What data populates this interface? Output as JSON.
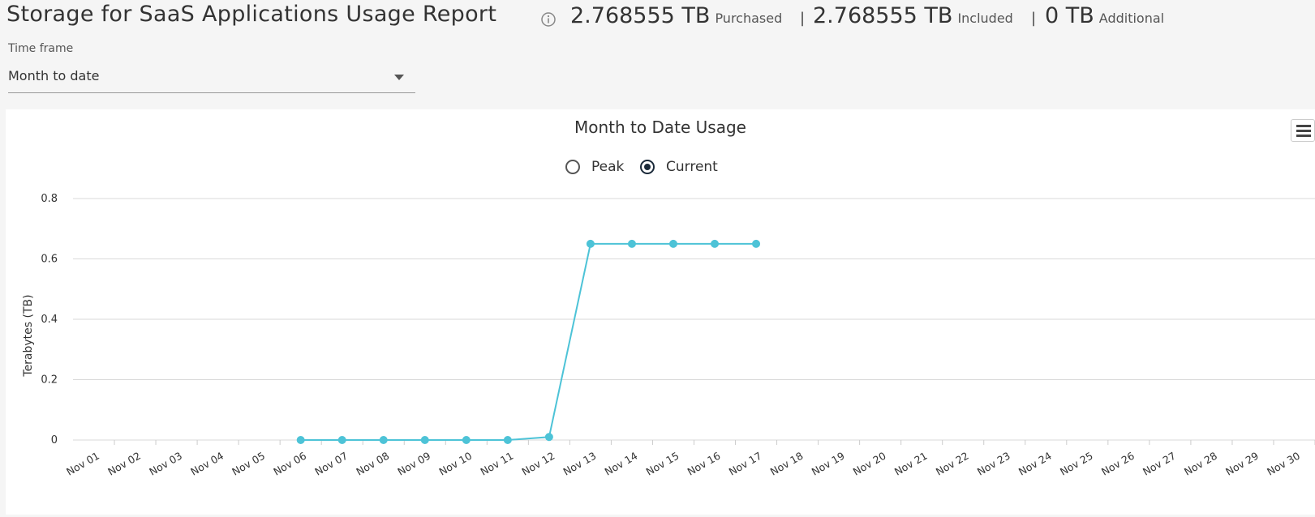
{
  "header": {
    "title": "Storage for SaaS Applications Usage Report",
    "purchased_value": "2.768555 TB",
    "purchased_label": "Purchased",
    "included_value": "2.768555 TB",
    "included_label": "Included",
    "additional_value": "0 TB",
    "additional_label": "Additional",
    "separator": "|"
  },
  "timeframe": {
    "label": "Time frame",
    "selected": "Month to date"
  },
  "chart_card": {
    "radio_peak": "Peak",
    "radio_current": "Current",
    "selected_radio": "Current"
  },
  "colors": {
    "series": "#4dc3d7",
    "grid": "#d9d9d9"
  },
  "icons": {
    "info": "info-icon",
    "dropdown": "chevron-down-icon",
    "menu": "hamburger-menu-icon"
  },
  "chart_data": {
    "type": "line",
    "title": "Month to Date Usage",
    "xlabel": "",
    "ylabel": "Terabytes (TB)",
    "ylim": [
      0,
      0.8
    ],
    "yticks": [
      0,
      0.2,
      0.4,
      0.6,
      0.8
    ],
    "yticklabels": [
      "0",
      "0.2",
      "0.4",
      "0.6",
      "0.8"
    ],
    "grid": true,
    "categories": [
      "Nov 01",
      "Nov 02",
      "Nov 03",
      "Nov 04",
      "Nov 05",
      "Nov 06",
      "Nov 07",
      "Nov 08",
      "Nov 09",
      "Nov 10",
      "Nov 11",
      "Nov 12",
      "Nov 13",
      "Nov 14",
      "Nov 15",
      "Nov 16",
      "Nov 17",
      "Nov 18",
      "Nov 19",
      "Nov 20",
      "Nov 21",
      "Nov 22",
      "Nov 23",
      "Nov 24",
      "Nov 25",
      "Nov 26",
      "Nov 27",
      "Nov 28",
      "Nov 29",
      "Nov 30"
    ],
    "series": [
      {
        "values": [
          null,
          null,
          null,
          null,
          null,
          0,
          0,
          0,
          0,
          0,
          0,
          0.01,
          0.65,
          0.65,
          0.65,
          0.65,
          0.65,
          null,
          null,
          null,
          null,
          null,
          null,
          null,
          null,
          null,
          null,
          null,
          null,
          null
        ]
      }
    ]
  }
}
